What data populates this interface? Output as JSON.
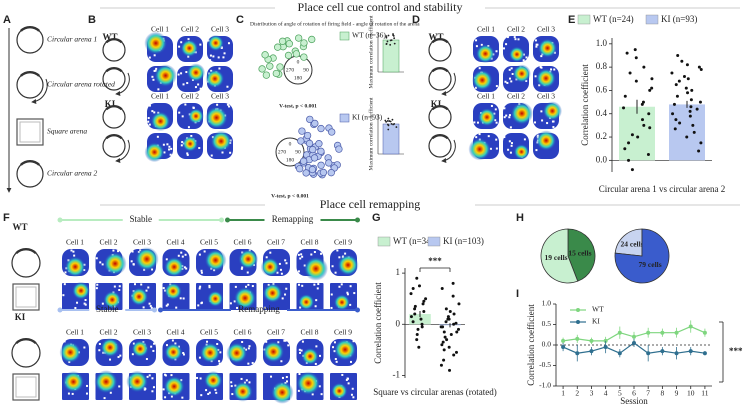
{
  "section_titles": [
    "Place cell cue control and stability",
    "Place cell remapping"
  ],
  "panels": [
    "A",
    "B",
    "C",
    "D",
    "E",
    "F",
    "G",
    "H",
    "I"
  ],
  "panel_a": {
    "labels": [
      "Circular arena 1",
      "Circular arena rotated",
      "Square arena",
      "Circular arena 2"
    ]
  },
  "panel_b": {
    "groups": [
      "WT",
      "KI"
    ],
    "cells": [
      "Cell 1",
      "Cell 2",
      "Cell 3"
    ]
  },
  "panel_c": {
    "title": "Distribution of angle of rotation of firing field - angle of rotation of the arena",
    "angles": [
      "0",
      "90",
      "180",
      "270"
    ],
    "groups": [
      {
        "name": "WT (n=36)",
        "color": "#c8f0d0",
        "stroke": "#4aa05a",
        "test": "V-test, p < 0.001",
        "ylabel": "Maximum correlation coefficient",
        "bar_value": 0.8
      },
      {
        "name": "KI (n=93)",
        "color": "#b8c8f0",
        "stroke": "#4a5aa8",
        "test": "V-test, p < 0.001",
        "ylabel": "Maximum correlation coefficient",
        "bar_value": 0.75
      }
    ]
  },
  "panel_d": {
    "groups": [
      "WT",
      "KI"
    ],
    "cells": [
      "Cell 1",
      "Cell 2",
      "Cell 3"
    ]
  },
  "panel_e": {
    "type": "bar",
    "ylabel": "Correlation coefficient",
    "xlabel": "Circular arena 1 vs circular arena 2",
    "ylim": [
      -0.1,
      1.05
    ],
    "yticks": [
      {
        "value": 0,
        "label": "0.0"
      },
      0.2,
      0.4,
      0.6,
      0.8,
      {
        "value": 1,
        "label": "1.0"
      }
    ],
    "series": [
      {
        "name": "WT (n=24)",
        "color": "#c8f0d0",
        "mean": 0.46,
        "error": 0.06,
        "points": [
          0.95,
          0.92,
          0.88,
          0.8,
          0.75,
          0.7,
          0.68,
          0.62,
          0.6,
          0.55,
          0.5,
          0.48,
          0.45,
          0.4,
          0.35,
          0.3,
          0.28,
          0.22,
          0.2,
          0.15,
          0.1,
          0.05,
          0.0,
          -0.08
        ]
      },
      {
        "name": "KI (n=93)",
        "color": "#b8c8f0",
        "mean": 0.48,
        "error": 0.03,
        "points": [
          0.9,
          0.85,
          0.82,
          0.8,
          0.78,
          0.75,
          0.72,
          0.7,
          0.68,
          0.65,
          0.62,
          0.6,
          0.58,
          0.55,
          0.52,
          0.5,
          0.48,
          0.46,
          0.44,
          0.42,
          0.4,
          0.38,
          0.35,
          0.32,
          0.3,
          0.27,
          0.24,
          0.2,
          0.15,
          0.08
        ]
      }
    ]
  },
  "panel_f": {
    "groups": [
      "WT",
      "KI"
    ],
    "phases": [
      "Stable",
      "Remapping"
    ],
    "cells": [
      "Cell 1",
      "Cell 2",
      "Cell 3",
      "Cell 4",
      "Cell 5",
      "Cell 6",
      "Cell 7",
      "Cell 8",
      "Cell 9"
    ]
  },
  "panel_g": {
    "type": "bar",
    "ylabel": "Correlation coefficient",
    "xlabel": "Square vs circular arenas (rotated)",
    "annotation": "***",
    "ylim": [
      -1.05,
      1.1
    ],
    "yticks": [
      -1,
      0,
      1
    ],
    "series": [
      {
        "name": "WT (n=34)",
        "color": "#c8f0d0",
        "mean": 0.2,
        "error": 0.06,
        "points": [
          0.9,
          0.75,
          0.7,
          0.6,
          0.5,
          0.45,
          0.4,
          0.35,
          0.3,
          0.25,
          0.2,
          0.15,
          0.1,
          0.05,
          0,
          -0.05,
          -0.1,
          -0.2,
          -0.3,
          -0.45
        ]
      },
      {
        "name": "KI (n=103)",
        "color": "#b8c8f0",
        "mean": -0.02,
        "error": 0.04,
        "points": [
          0.8,
          0.7,
          0.55,
          0.4,
          0.3,
          0.25,
          0.2,
          0.15,
          0.1,
          0.05,
          0.02,
          0,
          -0.05,
          -0.1,
          -0.15,
          -0.2,
          -0.25,
          -0.3,
          -0.35,
          -0.4,
          -0.45,
          -0.5,
          -0.55,
          -0.6,
          -0.7,
          -0.8,
          -0.9,
          0.1,
          -0.05,
          -0.15
        ]
      }
    ]
  },
  "panel_h": {
    "type": "pie",
    "pies": [
      {
        "values": [
          19,
          15
        ],
        "value_labels": [
          "19 cells",
          "15 cells"
        ],
        "colors": [
          "#c8f0d0",
          "#3a8a4a"
        ]
      },
      {
        "values": [
          24,
          79
        ],
        "value_labels": [
          "24 cells",
          "79 cells"
        ],
        "colors": [
          "#c8d4f0",
          "#3a5ccc"
        ]
      }
    ]
  },
  "panel_i": {
    "type": "line",
    "ylabel": "Correlation coefficient",
    "xlabel": "Session",
    "annotation": "***",
    "x": [
      1,
      2,
      3,
      4,
      5,
      6,
      7,
      8,
      9,
      10,
      11
    ],
    "xlim": [
      0.5,
      11.5
    ],
    "xticks": [
      1,
      2,
      3,
      4,
      5,
      6,
      7,
      8,
      9,
      10,
      11
    ],
    "ylim": [
      -1,
      1
    ],
    "yticks": [
      {
        "value": -1,
        "label": "-1.0"
      },
      -0.5,
      {
        "value": 0,
        "label": "0.0"
      },
      0.5,
      {
        "value": 1,
        "label": "1.0"
      }
    ],
    "series": [
      {
        "name": "WT",
        "color": "#7fd67f",
        "values": [
          0.1,
          0.15,
          0.1,
          0.1,
          0.3,
          0.2,
          0.3,
          0.3,
          0.3,
          0.45,
          0.3
        ],
        "errors": [
          0.08,
          0.1,
          0.08,
          0.1,
          0.15,
          0.12,
          0.12,
          0.1,
          0.12,
          0.15,
          0.1
        ]
      },
      {
        "name": "KI",
        "color": "#2f6f8f",
        "values": [
          -0.05,
          -0.2,
          -0.15,
          -0.05,
          -0.2,
          0.05,
          -0.2,
          -0.15,
          -0.2,
          -0.15,
          -0.2
        ],
        "errors": [
          0.1,
          0.2,
          0.1,
          0.15,
          0.1,
          0.1,
          0.2,
          0.1,
          0.15,
          0.1,
          0.05
        ]
      }
    ]
  }
}
